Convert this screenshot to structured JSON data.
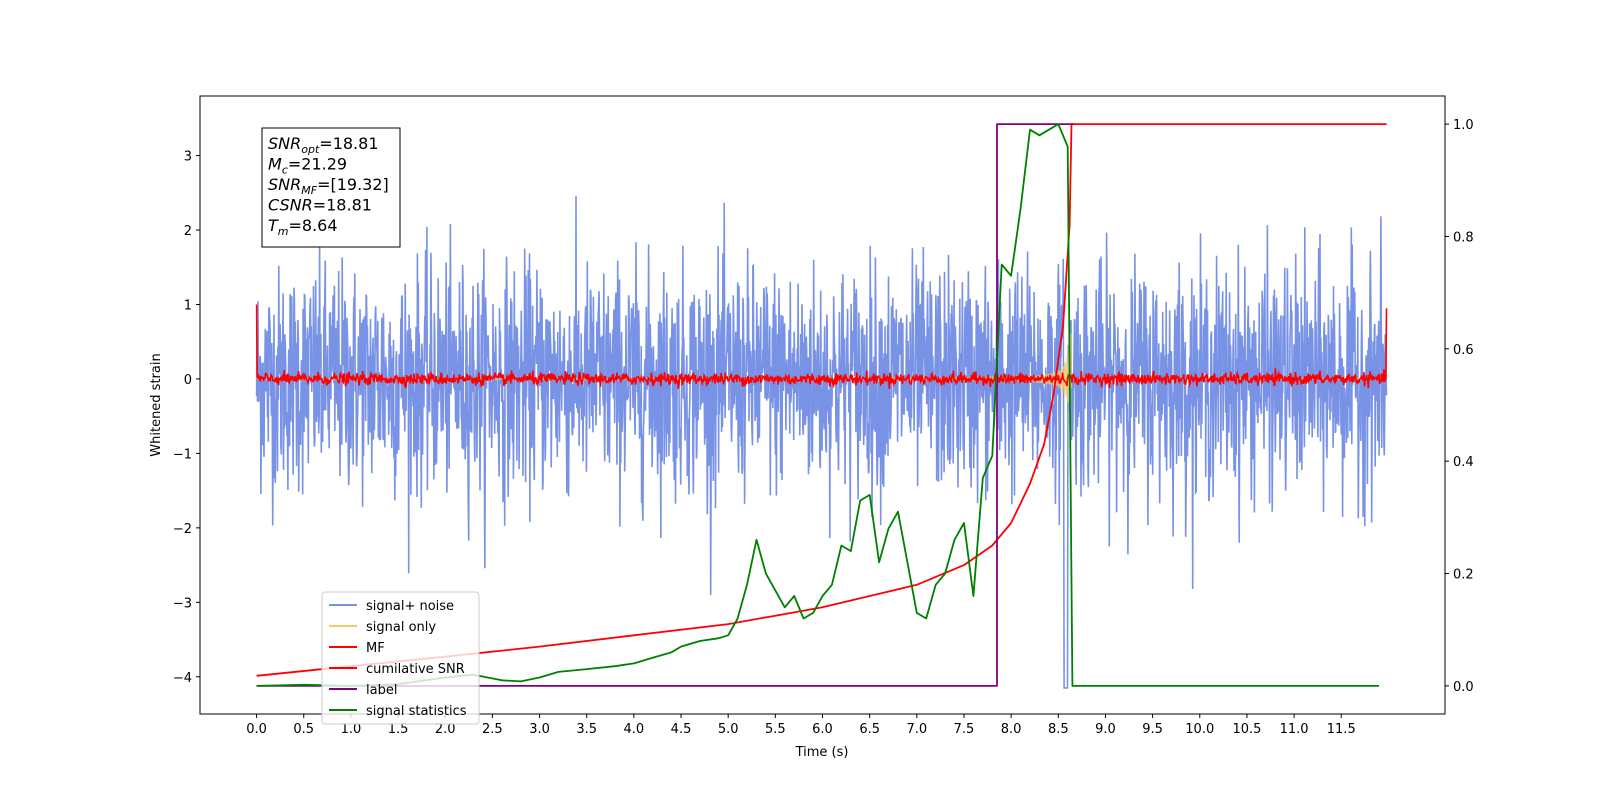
{
  "chart_data": {
    "type": "line",
    "xlabel": "Time (s)",
    "ylabel": "Whitened strain",
    "xlim": [
      -0.6,
      12.6
    ],
    "ylim": [
      -4.5,
      3.8
    ],
    "ylim_right": [
      -0.05,
      1.05
    ],
    "xticks": [
      0.0,
      0.5,
      1.0,
      1.5,
      2.0,
      2.5,
      3.0,
      3.5,
      4.0,
      4.5,
      5.0,
      5.5,
      6.0,
      6.5,
      7.0,
      7.5,
      8.0,
      8.5,
      9.0,
      9.5,
      10.0,
      10.5,
      11.0,
      11.5
    ],
    "xtick_labels": [
      "0.0",
      "0.5",
      "1.0",
      "1.5",
      "2.0",
      "2.5",
      "3.0",
      "3.5",
      "4.0",
      "4.5",
      "5.0",
      "5.5",
      "6.0",
      "6.5",
      "7.0",
      "7.5",
      "8.0",
      "8.5",
      "9.0",
      "9.5",
      "10.0",
      "10.5",
      "11.0",
      "11.5"
    ],
    "yticks": [
      -4,
      -3,
      -2,
      -1,
      0,
      1,
      2,
      3
    ],
    "ytick_labels": [
      "−4",
      "−3",
      "−2",
      "−1",
      "0",
      "1",
      "2",
      "3"
    ],
    "yticks_right": [
      0.0,
      0.2,
      0.4,
      0.6,
      0.8,
      1.0
    ],
    "ytick_labels_right": [
      "0.0",
      "0.2",
      "0.4",
      "0.6",
      "0.8",
      "1.0"
    ],
    "grid": false,
    "legend_position": "lower-left",
    "annotation": {
      "lines": [
        {
          "var": "SNR",
          "sub": "opt",
          "value": "=18.81"
        },
        {
          "var": "M",
          "sub": "c",
          "value": "=21.29"
        },
        {
          "var": "SNR",
          "sub": "MF",
          "value": "=[19.32]"
        },
        {
          "var": "CSNR",
          "sub": "",
          "value": "=18.81"
        },
        {
          "var": "T",
          "sub": "m",
          "value": "=8.64"
        }
      ]
    },
    "series": [
      {
        "name": "signal+ noise",
        "color": "#7892e6",
        "axis": "left",
        "kind": "noise",
        "x_range": [
          0,
          11.98
        ],
        "std": 0.75
      },
      {
        "name": "signal only",
        "color": "#f5c866",
        "axis": "left",
        "kind": "chirp",
        "x_range": [
          0,
          11.98
        ],
        "merger_time": 8.64
      },
      {
        "name": "MF",
        "color": "#ff0000",
        "axis": "left",
        "kind": "mf_noise",
        "x_range": [
          0,
          11.98
        ]
      },
      {
        "name": "cumilative SNR",
        "color": "#ff0000",
        "axis": "right",
        "x": [
          0,
          1,
          2,
          3,
          4,
          5,
          5.5,
          6,
          6.5,
          7,
          7.5,
          7.8,
          8.0,
          8.2,
          8.35,
          8.45,
          8.55,
          8.62,
          8.64,
          11.98
        ],
        "values": [
          0.018,
          0.035,
          0.052,
          0.07,
          0.09,
          0.11,
          0.125,
          0.14,
          0.16,
          0.18,
          0.215,
          0.25,
          0.29,
          0.36,
          0.43,
          0.52,
          0.64,
          0.82,
          1.0,
          1.0
        ]
      },
      {
        "name": "label",
        "color": "#800080",
        "axis": "right",
        "x": [
          0,
          7.85,
          7.85,
          8.64,
          8.64,
          8.66
        ],
        "values": [
          0.0,
          0.0,
          1.0,
          1.0,
          1.0,
          1.0
        ]
      },
      {
        "name": "signal statistics",
        "color": "#008000",
        "axis": "right",
        "x": [
          0,
          0.5,
          1,
          1.5,
          2,
          2.3,
          2.6,
          2.8,
          3,
          3.2,
          3.5,
          3.8,
          4,
          4.2,
          4.4,
          4.5,
          4.7,
          4.9,
          5,
          5.1,
          5.2,
          5.3,
          5.4,
          5.5,
          5.6,
          5.7,
          5.8,
          5.9,
          6,
          6.1,
          6.2,
          6.3,
          6.4,
          6.5,
          6.6,
          6.7,
          6.8,
          6.9,
          7,
          7.1,
          7.2,
          7.3,
          7.4,
          7.5,
          7.6,
          7.7,
          7.8,
          7.9,
          8,
          8.1,
          8.2,
          8.3,
          8.4,
          8.5,
          8.6,
          8.65,
          8.7,
          9,
          10,
          11,
          11.9
        ],
        "values": [
          0.0,
          0.002,
          0.0,
          0.003,
          0.015,
          0.02,
          0.01,
          0.008,
          0.015,
          0.025,
          0.03,
          0.035,
          0.04,
          0.05,
          0.06,
          0.07,
          0.08,
          0.085,
          0.09,
          0.12,
          0.18,
          0.26,
          0.2,
          0.17,
          0.14,
          0.16,
          0.12,
          0.13,
          0.16,
          0.18,
          0.25,
          0.24,
          0.33,
          0.34,
          0.22,
          0.28,
          0.31,
          0.22,
          0.13,
          0.12,
          0.18,
          0.2,
          0.26,
          0.29,
          0.16,
          0.37,
          0.41,
          0.75,
          0.73,
          0.85,
          0.99,
          0.98,
          0.99,
          1.0,
          0.96,
          0.0,
          0.0,
          0.0,
          0.0,
          0.0,
          0.0
        ]
      }
    ]
  }
}
